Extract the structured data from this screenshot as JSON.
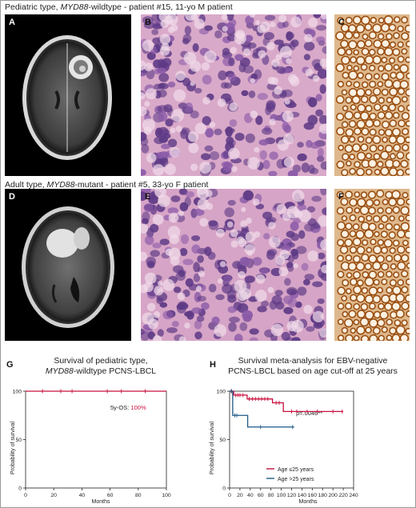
{
  "row1": {
    "title_pre": "Pediatric type, ",
    "title_gene": "MYD88",
    "title_post": "-wildtype - patient #15, 11-yo M patient"
  },
  "row2": {
    "title_pre": "Adult type, ",
    "title_gene": "MYD88",
    "title_post": "-mutant - patient #5, 33-yo F patient"
  },
  "panels": {
    "A": "A",
    "B": "B",
    "C": "C",
    "D": "D",
    "E": "E",
    "F": "F",
    "G": "G",
    "H": "H"
  },
  "colors": {
    "mri_bg": "#000000",
    "he_pink": "#d8a6c8",
    "he_purple": "#5e3a86",
    "ihc_brown": "#b46a1e",
    "red_series": "#c8103c",
    "blue_series": "#1f5a86"
  },
  "chart_data": [
    {
      "type": "line",
      "panel": "G",
      "title_line1": "Survival of pediatric type,",
      "title_line2_gene": "MYD88",
      "title_line2_rest": "-wildtype PCNS-LBCL",
      "xlabel": "Months",
      "ylabel": "Probability of survival",
      "xlim": [
        0,
        100
      ],
      "ylim": [
        0,
        100
      ],
      "xticks": [
        0,
        20,
        40,
        60,
        80,
        100
      ],
      "yticks": [
        0,
        50,
        100
      ],
      "annotation_label": "5y-OS: ",
      "annotation_value": "100%",
      "series": [
        {
          "color": "#c8103c",
          "steps": [
            [
              0,
              100
            ],
            [
              100,
              100
            ]
          ],
          "censor": [
            12,
            25,
            33,
            58,
            68,
            85
          ]
        }
      ]
    },
    {
      "type": "line",
      "panel": "H",
      "title_line1": "Survival meta-analysis for EBV-negative",
      "title_line2": "PCNS-LBCL based on age cut-off at 25 years",
      "xlabel": "Months",
      "ylabel": "Probability of survival",
      "xlim": [
        0,
        240
      ],
      "ylim": [
        0,
        100
      ],
      "xticks": [
        0,
        20,
        40,
        60,
        80,
        100,
        120,
        140,
        160,
        180,
        200,
        220,
        240
      ],
      "yticks": [
        0,
        50,
        100
      ],
      "annotation": "p=.0046**",
      "series": [
        {
          "name": "Age ≤25 years",
          "color": "#c8103c",
          "steps": [
            [
              0,
              100
            ],
            [
              8,
              96
            ],
            [
              30,
              96
            ],
            [
              34,
              92
            ],
            [
              80,
              92
            ],
            [
              83,
              88
            ],
            [
              100,
              88
            ],
            [
              104,
              79
            ],
            [
              220,
              79
            ]
          ],
          "censor": [
            4,
            12,
            16,
            20,
            26,
            38,
            44,
            50,
            56,
            62,
            68,
            74,
            90,
            96,
            120,
            130,
            150,
            170,
            200,
            218
          ]
        },
        {
          "name": "Age >25 years",
          "color": "#1f5a86",
          "steps": [
            [
              0,
              100
            ],
            [
              6,
              75
            ],
            [
              32,
              75
            ],
            [
              35,
              63
            ],
            [
              125,
              63
            ]
          ],
          "censor": [
            3,
            10,
            14,
            60,
            122
          ]
        }
      ],
      "legend_position": "bottom-right"
    }
  ]
}
